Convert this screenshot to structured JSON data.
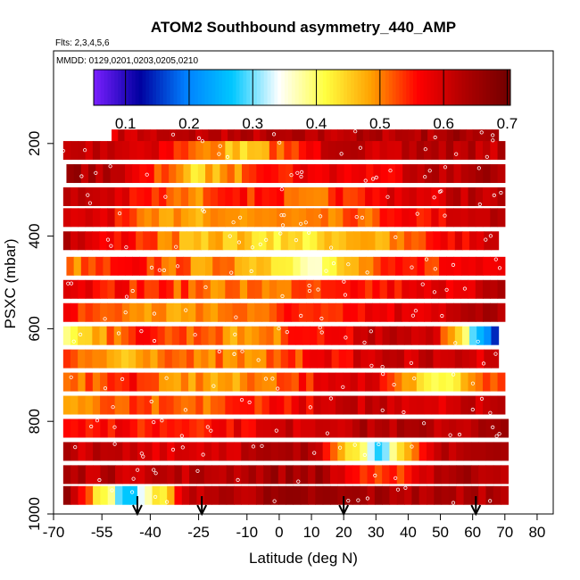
{
  "chart_data": {
    "type": "heatmap",
    "title": "ATOM2 Southbound asymmetry_440_AMP",
    "flights_label": "Flts: 2,3,4,5,6",
    "dates_label": "MMDD: 0129,0201,0203,0205,0210",
    "xlabel": "Latitude (deg N)",
    "ylabel": "PSXC (mbar)",
    "xlim": [
      -70,
      85
    ],
    "ylim": [
      1000,
      0
    ],
    "x_ticks": [
      -70,
      -55,
      -40,
      -25,
      -10,
      0,
      10,
      20,
      30,
      40,
      50,
      60,
      70,
      80
    ],
    "x_tick_labels": [
      "-70",
      "-55",
      "-40",
      "-25",
      "-10",
      "0",
      "10",
      "20",
      "30",
      "40",
      "50",
      "60",
      "70",
      "80"
    ],
    "y_ticks": [
      200,
      400,
      600,
      800,
      1000
    ],
    "y_tick_labels": [
      "200",
      "400",
      "600",
      "800",
      "1000"
    ],
    "colorbar": {
      "range": [
        0.05,
        0.705
      ],
      "ticks": [
        0.1,
        0.2,
        0.3,
        0.4,
        0.5,
        0.6,
        0.7
      ],
      "tick_labels": [
        "0.1",
        "0.2",
        "0.3",
        "0.4",
        "0.5",
        "0.6",
        "0.7"
      ],
      "colors": [
        "#7a1fff",
        "#0000a0",
        "#0080ff",
        "#00c8ff",
        "#ffffff",
        "#ffff40",
        "#ffa000",
        "#ff0000",
        "#b00000",
        "#700000"
      ]
    },
    "arrows_latitude": [
      -44,
      -24,
      20,
      61
    ],
    "rows": [
      {
        "p": 190,
        "lon": [
          -52,
          68
        ],
        "v": [
          0.6,
          0.62,
          0.62,
          0.63,
          0.65
        ]
      },
      {
        "p": 215,
        "lon": [
          -67,
          70
        ],
        "v": [
          0.62,
          0.58,
          0.45,
          0.6,
          0.63,
          0.62
        ]
      },
      {
        "p": 265,
        "lon": [
          -66,
          70
        ],
        "v": [
          0.65,
          0.6,
          0.45,
          0.52,
          0.58,
          0.56,
          0.62,
          0.64
        ]
      },
      {
        "p": 315,
        "lon": [
          -67,
          70
        ],
        "v": [
          0.63,
          0.58,
          0.5,
          0.55,
          0.52,
          0.57,
          0.6,
          0.63
        ]
      },
      {
        "p": 360,
        "lon": [
          -67,
          70
        ],
        "v": [
          0.62,
          0.55,
          0.46,
          0.5,
          0.48,
          0.53,
          0.57,
          0.62
        ]
      },
      {
        "p": 410,
        "lon": [
          -67,
          68
        ],
        "v": [
          0.62,
          0.55,
          0.48,
          0.45,
          0.43,
          0.48,
          0.55,
          0.6
        ]
      },
      {
        "p": 465,
        "lon": [
          -66,
          70
        ],
        "v": [
          0.5,
          0.55,
          0.5,
          0.48,
          0.38,
          0.52,
          0.55,
          0.6
        ]
      },
      {
        "p": 515,
        "lon": [
          -67,
          70
        ],
        "v": [
          0.6,
          0.55,
          0.52,
          0.5,
          0.52,
          0.55,
          0.58,
          0.62
        ]
      },
      {
        "p": 565,
        "lon": [
          -67,
          70
        ],
        "v": [
          0.55,
          0.5,
          0.48,
          0.52,
          0.55,
          0.58,
          0.6,
          0.64
        ]
      },
      {
        "p": 615,
        "lon": [
          -67,
          68
        ],
        "v": [
          0.38,
          0.55,
          0.52,
          0.48,
          0.55,
          0.6,
          0.62,
          0.15
        ]
      },
      {
        "p": 665,
        "lon": [
          -67,
          68
        ],
        "v": [
          0.55,
          0.45,
          0.52,
          0.5,
          0.55,
          0.6,
          0.62,
          0.58
        ]
      },
      {
        "p": 715,
        "lon": [
          -67,
          70
        ],
        "v": [
          0.5,
          0.55,
          0.48,
          0.5,
          0.56,
          0.6,
          0.4,
          0.55
        ]
      },
      {
        "p": 765,
        "lon": [
          -67,
          70
        ],
        "v": [
          0.48,
          0.52,
          0.5,
          0.55,
          0.58,
          0.62,
          0.6,
          0.62
        ]
      },
      {
        "p": 815,
        "lon": [
          -67,
          71
        ],
        "v": [
          0.58,
          0.55,
          0.56,
          0.58,
          0.62,
          0.63,
          0.62,
          0.64
        ]
      },
      {
        "p": 865,
        "lon": [
          -67,
          71
        ],
        "v": [
          0.62,
          0.6,
          0.6,
          0.62,
          0.63,
          0.3,
          0.63,
          0.64
        ]
      },
      {
        "p": 915,
        "lon": [
          -67,
          71
        ],
        "v": [
          0.63,
          0.62,
          0.62,
          0.64,
          0.65,
          0.5,
          0.64,
          0.64
        ]
      },
      {
        "p": 960,
        "lon": [
          -67,
          71
        ],
        "v": [
          0.64,
          0.25,
          0.62,
          0.64,
          0.65,
          0.64,
          0.63,
          0.64
        ]
      }
    ]
  }
}
